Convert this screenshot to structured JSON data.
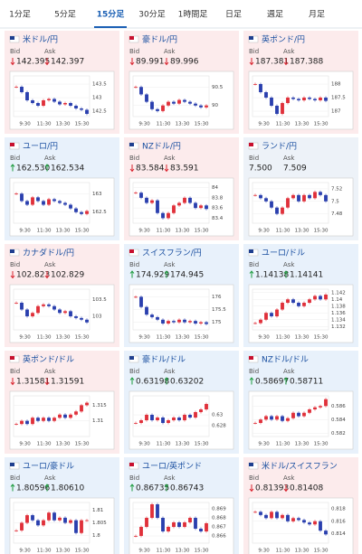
{
  "tabs": [
    "1分足",
    "5分足",
    "15分足",
    "30分足",
    "1時間足",
    "日足",
    "週足",
    "月足"
  ],
  "active_tab": 2,
  "labels": {
    "bid": "Bid",
    "ask": "Ask"
  },
  "times": [
    "9:30",
    "11:30",
    "13:30",
    "15:30"
  ],
  "cards": [
    {
      "pair": "米ドル/円",
      "trend": "down",
      "bid": "142.395",
      "ask": "142.397",
      "ylim": [
        142.3,
        143.8
      ],
      "yticks": [
        143.5,
        143,
        142.5
      ],
      "closes": [
        143.4,
        143.2,
        142.9,
        142.8,
        142.7,
        142.9,
        142.95,
        142.85,
        142.75,
        142.8,
        142.7,
        142.6,
        142.55,
        142.4
      ]
    },
    {
      "pair": "豪ドル/円",
      "trend": "down",
      "bid": "89.991",
      "ask": "89.996",
      "ylim": [
        89.7,
        90.8
      ],
      "yticks": [
        90.5,
        90
      ],
      "closes": [
        90.5,
        90.3,
        90.1,
        89.9,
        89.85,
        90.0,
        90.1,
        90.05,
        90.15,
        90.1,
        90.05,
        90.0,
        89.95,
        90.0
      ]
    },
    {
      "pair": "英ポンド/円",
      "trend": "down",
      "bid": "187.381",
      "ask": "187.388",
      "ylim": [
        186.8,
        188.3
      ],
      "yticks": [
        188,
        187.5,
        187
      ],
      "closes": [
        188.0,
        187.7,
        187.5,
        187.2,
        186.9,
        187.3,
        187.5,
        187.45,
        187.4,
        187.5,
        187.45,
        187.4,
        187.5,
        187.38
      ]
    },
    {
      "pair": "ユーロ/円",
      "trend": "up",
      "bid": "162.530",
      "ask": "162.534",
      "ylim": [
        162.2,
        163.3
      ],
      "yticks": [
        163,
        162.5
      ],
      "closes": [
        163.0,
        162.8,
        162.7,
        162.9,
        162.8,
        162.7,
        162.85,
        162.8,
        162.75,
        162.7,
        162.6,
        162.5,
        162.45,
        162.53
      ]
    },
    {
      "pair": "NZドル/円",
      "trend": "down",
      "bid": "83.584",
      "ask": "83.591",
      "ylim": [
        83.3,
        84.1
      ],
      "yticks": [
        84,
        83.8,
        83.6,
        83.4
      ],
      "closes": [
        83.9,
        83.8,
        83.7,
        83.75,
        83.5,
        83.4,
        83.5,
        83.65,
        83.7,
        83.8,
        83.7,
        83.6,
        83.65,
        83.58
      ]
    },
    {
      "pair": "ランド/円",
      "trend": "flat",
      "bid": "7.500",
      "ask": "7.509",
      "ylim": [
        7.465,
        7.53
      ],
      "yticks": [
        7.52,
        7.5,
        7.48
      ],
      "closes": [
        7.51,
        7.505,
        7.5,
        7.49,
        7.48,
        7.49,
        7.505,
        7.51,
        7.5,
        7.51,
        7.505,
        7.515,
        7.51,
        7.5
      ]
    },
    {
      "pair": "カナダドル/円",
      "trend": "down",
      "bid": "102.823",
      "ask": "102.829",
      "ylim": [
        102.6,
        103.8
      ],
      "yticks": [
        103.5,
        103
      ],
      "closes": [
        103.4,
        103.2,
        103.0,
        103.1,
        103.3,
        103.35,
        103.3,
        103.2,
        103.1,
        103.15,
        103.0,
        102.95,
        102.9,
        102.82
      ]
    },
    {
      "pair": "スイスフラン/円",
      "trend": "up",
      "bid": "174.929",
      "ask": "174.945",
      "ylim": [
        174.7,
        176.3
      ],
      "yticks": [
        176,
        175.5,
        175
      ],
      "closes": [
        176.0,
        175.6,
        175.3,
        175.2,
        175.1,
        174.95,
        175.05,
        175.0,
        175.1,
        175.0,
        175.05,
        174.95,
        175.0,
        174.93
      ]
    },
    {
      "pair": "ユーロ/ドル",
      "trend": "up",
      "bid": "1.14138",
      "ask": "1.14141",
      "ylim": [
        1.131,
        1.143
      ],
      "yticks": [
        1.142,
        1.14,
        1.138,
        1.136,
        1.134,
        1.132
      ],
      "closes": [
        1.133,
        1.134,
        1.136,
        1.135,
        1.137,
        1.139,
        1.14,
        1.139,
        1.138,
        1.139,
        1.14,
        1.141,
        1.14,
        1.1414
      ]
    },
    {
      "pair": "英ポンド/ドル",
      "trend": "down",
      "bid": "1.31581",
      "ask": "1.31591",
      "ylim": [
        1.305,
        1.318
      ],
      "yticks": [
        1.315,
        1.31
      ],
      "closes": [
        1.309,
        1.31,
        1.309,
        1.311,
        1.31,
        1.311,
        1.31,
        1.311,
        1.312,
        1.311,
        1.312,
        1.313,
        1.315,
        1.3158
      ]
    },
    {
      "pair": "豪ドル/ドル",
      "trend": "up",
      "bid": "0.63198",
      "ask": "0.63202",
      "ylim": [
        0.626,
        0.6335
      ],
      "yticks": [
        0.63,
        0.628
      ],
      "closes": [
        0.6285,
        0.629,
        0.63,
        0.629,
        0.6295,
        0.6285,
        0.629,
        0.6295,
        0.629,
        0.63,
        0.6295,
        0.6305,
        0.631,
        0.632
      ]
    },
    {
      "pair": "NZドル/ドル",
      "trend": "up",
      "bid": "0.58697",
      "ask": "0.58711",
      "ylim": [
        0.5815,
        0.5875
      ],
      "yticks": [
        0.586,
        0.584,
        0.582
      ],
      "closes": [
        0.5835,
        0.584,
        0.5845,
        0.584,
        0.5845,
        0.5838,
        0.5842,
        0.585,
        0.5845,
        0.585,
        0.5855,
        0.5858,
        0.586,
        0.587
      ]
    },
    {
      "pair": "ユーロ/豪ドル",
      "trend": "up",
      "bid": "1.80596",
      "ask": "1.80610",
      "ylim": [
        1.797,
        1.813
      ],
      "yticks": [
        1.81,
        1.805,
        1.8
      ],
      "closes": [
        1.802,
        1.805,
        1.808,
        1.806,
        1.804,
        1.806,
        1.809,
        1.806,
        1.807,
        1.805,
        1.806,
        1.801,
        1.806,
        1.806
      ]
    },
    {
      "pair": "ユーロ/英ポンド",
      "trend": "up",
      "bid": "0.86735",
      "ask": "0.86743",
      "ylim": [
        0.8652,
        0.8697
      ],
      "yticks": [
        0.869,
        0.868,
        0.867,
        0.866
      ],
      "closes": [
        0.866,
        0.867,
        0.868,
        0.8695,
        0.868,
        0.8665,
        0.867,
        0.8675,
        0.867,
        0.8675,
        0.868,
        0.8668,
        0.8665,
        0.8674
      ]
    },
    {
      "pair": "米ドル/スイスフラン",
      "trend": "down",
      "bid": "0.81393",
      "ask": "0.81408",
      "ylim": [
        0.8125,
        0.819
      ],
      "yticks": [
        0.818,
        0.816,
        0.814
      ],
      "closes": [
        0.8175,
        0.817,
        0.8165,
        0.8175,
        0.8165,
        0.817,
        0.816,
        0.8165,
        0.8162,
        0.8158,
        0.8155,
        0.816,
        0.8145,
        0.8139
      ]
    }
  ]
}
